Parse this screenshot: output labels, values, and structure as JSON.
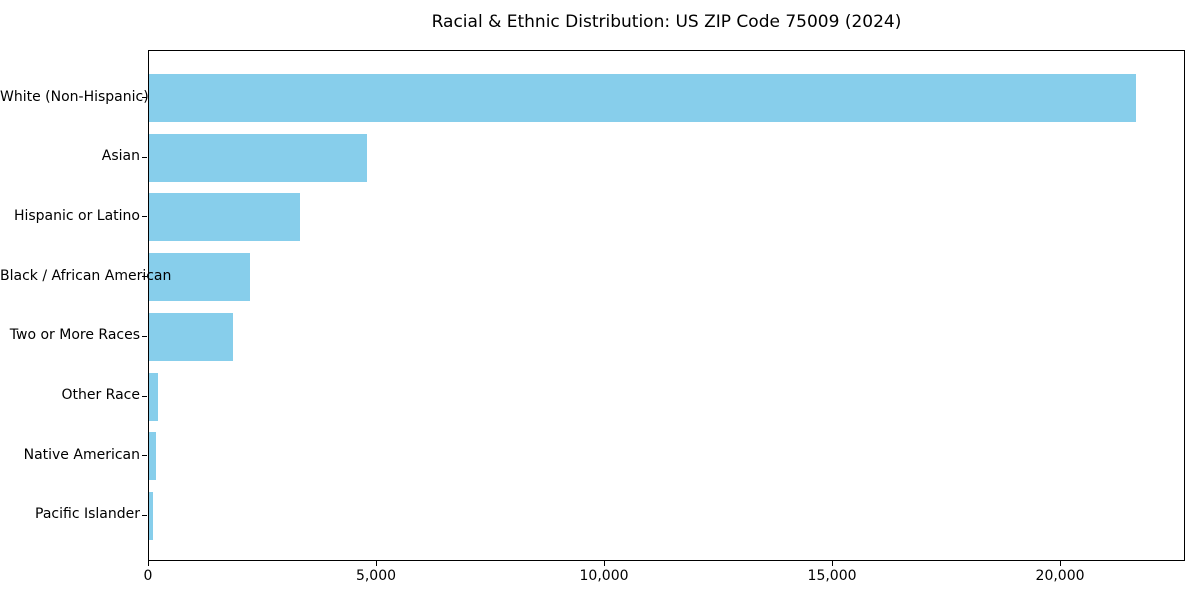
{
  "figure": {
    "background": "#ffffff",
    "text_color": "#000000",
    "spine_color": "#000000"
  },
  "chart_data": {
    "type": "bar",
    "orientation": "horizontal",
    "title": "Racial & Ethnic Distribution: US ZIP Code 75009 (2024)",
    "xlabel": "",
    "ylabel": "",
    "categories": [
      "White (Non-Hispanic)",
      "Asian",
      "Hispanic or Latino",
      "Black / African American",
      "Two or More Races",
      "Other Race",
      "Native American",
      "Pacific Islander"
    ],
    "values": [
      21680,
      4800,
      3310,
      2210,
      1840,
      205,
      155,
      90
    ],
    "bar_color": "#87CEEB",
    "xlim": [
      0,
      22740
    ],
    "x_ticks": [
      {
        "value": 0,
        "label": "0"
      },
      {
        "value": 5000,
        "label": "5,000"
      },
      {
        "value": 10000,
        "label": "10,000"
      },
      {
        "value": 15000,
        "label": "15,000"
      },
      {
        "value": 20000,
        "label": "20,000"
      }
    ],
    "grid": false,
    "legend": "none"
  }
}
